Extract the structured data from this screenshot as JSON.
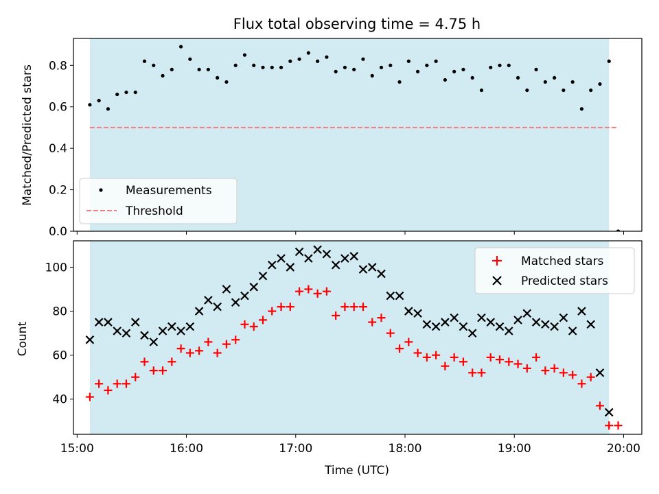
{
  "chart_data": [
    {
      "type": "scatter",
      "title": "Flux total observing time = 4.75 h",
      "xlabel": "",
      "ylabel": "Matched/Predicted stars",
      "xlim": [
        "14:58",
        "20:10"
      ],
      "ylim": [
        0,
        0.93
      ],
      "y_ticks": [
        "0.0",
        "0.2",
        "0.4",
        "0.6",
        "0.8"
      ],
      "shaded_interval": [
        "15:07",
        "19:52"
      ],
      "shade_color": "#add8e6",
      "legend_position": "lower-left",
      "series": [
        {
          "name": "Measurements",
          "marker": "dot",
          "color": "#000000",
          "x": [
            "15:07",
            "15:12",
            "15:17",
            "15:22",
            "15:27",
            "15:32",
            "15:37",
            "15:42",
            "15:47",
            "15:52",
            "15:57",
            "16:02",
            "16:07",
            "16:12",
            "16:17",
            "16:22",
            "16:27",
            "16:32",
            "16:37",
            "16:42",
            "16:47",
            "16:52",
            "16:57",
            "17:02",
            "17:07",
            "17:12",
            "17:17",
            "17:22",
            "17:27",
            "17:32",
            "17:37",
            "17:42",
            "17:47",
            "17:52",
            "17:57",
            "18:02",
            "18:07",
            "18:12",
            "18:17",
            "18:22",
            "18:27",
            "18:32",
            "18:37",
            "18:42",
            "18:47",
            "18:52",
            "18:57",
            "19:02",
            "19:07",
            "19:12",
            "19:17",
            "19:22",
            "19:27",
            "19:32",
            "19:37",
            "19:42",
            "19:47",
            "19:52",
            "19:57"
          ],
          "y": [
            0.61,
            0.63,
            0.59,
            0.66,
            0.67,
            0.67,
            0.82,
            0.8,
            0.75,
            0.78,
            0.89,
            0.83,
            0.78,
            0.78,
            0.74,
            0.72,
            0.8,
            0.85,
            0.8,
            0.79,
            0.79,
            0.79,
            0.82,
            0.83,
            0.86,
            0.82,
            0.84,
            0.77,
            0.79,
            0.78,
            0.83,
            0.75,
            0.79,
            0.8,
            0.72,
            0.82,
            0.77,
            0.8,
            0.82,
            0.73,
            0.77,
            0.78,
            0.74,
            0.68,
            0.79,
            0.8,
            0.8,
            0.74,
            0.68,
            0.78,
            0.72,
            0.74,
            0.68,
            0.72,
            0.59,
            0.68,
            0.71,
            0.82,
            0.0
          ]
        },
        {
          "name": "Threshold",
          "marker": "dashed-line",
          "color": "#f08080",
          "x": [
            "15:07",
            "19:57"
          ],
          "y": [
            0.5,
            0.5
          ]
        }
      ]
    },
    {
      "type": "scatter",
      "title": "",
      "xlabel": "Time (UTC)",
      "ylabel": "Count",
      "x_ticks": [
        "15:00",
        "16:00",
        "17:00",
        "18:00",
        "19:00",
        "20:00"
      ],
      "xlim": [
        "14:58",
        "20:10"
      ],
      "ylim": [
        24,
        112
      ],
      "y_ticks": [
        "40",
        "60",
        "80",
        "100"
      ],
      "shaded_interval": [
        "15:07",
        "19:52"
      ],
      "shade_color": "#add8e6",
      "legend_position": "upper-right",
      "series": [
        {
          "name": "Matched stars",
          "marker": "plus",
          "color": "#ff0000",
          "x": [
            "15:07",
            "15:12",
            "15:17",
            "15:22",
            "15:27",
            "15:32",
            "15:37",
            "15:42",
            "15:47",
            "15:52",
            "15:57",
            "16:02",
            "16:07",
            "16:12",
            "16:17",
            "16:22",
            "16:27",
            "16:32",
            "16:37",
            "16:42",
            "16:47",
            "16:52",
            "16:57",
            "17:02",
            "17:07",
            "17:12",
            "17:17",
            "17:22",
            "17:27",
            "17:32",
            "17:37",
            "17:42",
            "17:47",
            "17:52",
            "17:57",
            "18:02",
            "18:07",
            "18:12",
            "18:17",
            "18:22",
            "18:27",
            "18:32",
            "18:37",
            "18:42",
            "18:47",
            "18:52",
            "18:57",
            "19:02",
            "19:07",
            "19:12",
            "19:17",
            "19:22",
            "19:27",
            "19:32",
            "19:37",
            "19:42",
            "19:47",
            "19:52",
            "19:57"
          ],
          "y": [
            41,
            47,
            44,
            47,
            47,
            50,
            57,
            53,
            53,
            57,
            63,
            61,
            62,
            66,
            61,
            65,
            67,
            74,
            73,
            76,
            80,
            82,
            82,
            89,
            90,
            88,
            89,
            78,
            82,
            82,
            82,
            75,
            77,
            70,
            63,
            66,
            61,
            59,
            60,
            55,
            59,
            57,
            52,
            52,
            59,
            58,
            57,
            56,
            54,
            59,
            53,
            54,
            52,
            51,
            47,
            50,
            37,
            28,
            28
          ]
        },
        {
          "name": "Predicted stars",
          "marker": "x",
          "color": "#000000",
          "x": [
            "15:07",
            "15:12",
            "15:17",
            "15:22",
            "15:27",
            "15:32",
            "15:37",
            "15:42",
            "15:47",
            "15:52",
            "15:57",
            "16:02",
            "16:07",
            "16:12",
            "16:17",
            "16:22",
            "16:27",
            "16:32",
            "16:37",
            "16:42",
            "16:47",
            "16:52",
            "16:57",
            "17:02",
            "17:07",
            "17:12",
            "17:17",
            "17:22",
            "17:27",
            "17:32",
            "17:37",
            "17:42",
            "17:47",
            "17:52",
            "17:57",
            "18:02",
            "18:07",
            "18:12",
            "18:17",
            "18:22",
            "18:27",
            "18:32",
            "18:37",
            "18:42",
            "18:47",
            "18:52",
            "18:57",
            "19:02",
            "19:07",
            "19:12",
            "19:17",
            "19:22",
            "19:27",
            "19:32",
            "19:37",
            "19:42",
            "19:47",
            "19:52"
          ],
          "y": [
            67,
            75,
            75,
            71,
            70,
            75,
            69,
            66,
            71,
            73,
            71,
            73,
            80,
            85,
            82,
            90,
            84,
            87,
            91,
            96,
            101,
            104,
            100,
            107,
            104,
            108,
            106,
            101,
            104,
            105,
            99,
            100,
            97,
            87,
            87,
            80,
            79,
            74,
            73,
            75,
            77,
            73,
            70,
            77,
            75,
            73,
            71,
            76,
            79,
            75,
            74,
            73,
            77,
            71,
            80,
            74,
            52,
            34
          ]
        }
      ]
    }
  ]
}
